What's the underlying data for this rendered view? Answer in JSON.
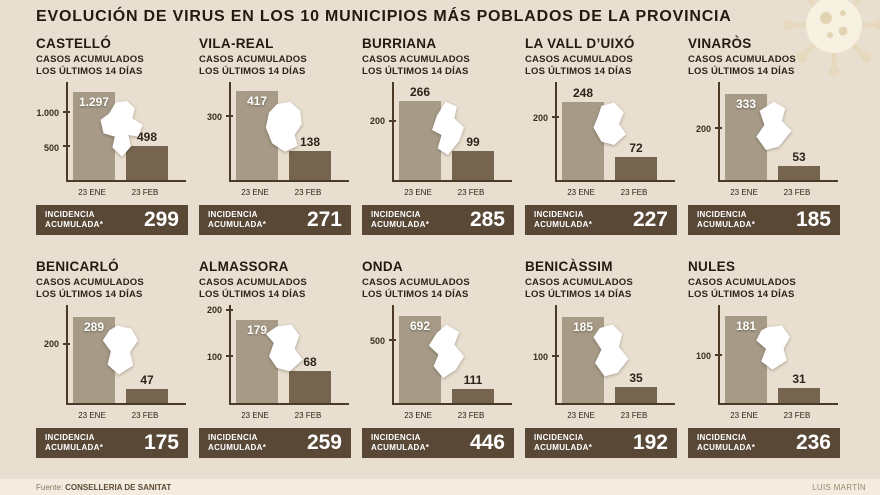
{
  "header": {
    "title": "EVOLUCIÓN DE VIRUS EN LOS 10 MUNICIPIOS MÁS POBLADOS DE LA PROVINCIA"
  },
  "labels": {
    "cases_line1": "CASOS ACUMULADOS",
    "cases_line2": "LOS ÚLTIMOS 14 DÍAS",
    "incidence_line1": "INCIDENCIA",
    "incidence_line2": "ACUMULADA*"
  },
  "colors": {
    "background": "#e9dfd0",
    "bar_23ene": "#a79b88",
    "bar_23feb": "#75654f",
    "incidence_strip": "#5a4836",
    "ink": "#231a10"
  },
  "footer": {
    "source_prefix": "Fuente:",
    "source": "CONSELLERIA DE SANITAT",
    "author": "LUIS MARTÍN"
  },
  "chart_data": [
    {
      "type": "bar",
      "title": "CASTELLÓ",
      "categories": [
        "23 ENE",
        "23 FEB"
      ],
      "values": [
        1297,
        498
      ],
      "value_labels": [
        "1.297",
        "498"
      ],
      "yticks": [
        {
          "value": 1000,
          "label": "1.000"
        },
        {
          "value": 500,
          "label": "500"
        }
      ],
      "ylim": [
        0,
        1450
      ],
      "label1_placement": "inside",
      "incidencia": "299"
    },
    {
      "type": "bar",
      "title": "VILA-REAL",
      "categories": [
        "23 ENE",
        "23 FEB"
      ],
      "values": [
        417,
        138
      ],
      "value_labels": [
        "417",
        "138"
      ],
      "yticks": [
        {
          "value": 300,
          "label": "300"
        }
      ],
      "ylim": [
        0,
        460
      ],
      "label1_placement": "inside",
      "incidencia": "271"
    },
    {
      "type": "bar",
      "title": "BURRIANA",
      "categories": [
        "23 ENE",
        "23 FEB"
      ],
      "values": [
        266,
        99
      ],
      "value_labels": [
        "266",
        "99"
      ],
      "yticks": [
        {
          "value": 200,
          "label": "200"
        }
      ],
      "ylim": [
        0,
        330
      ],
      "label1_placement": "above",
      "incidencia": "285"
    },
    {
      "type": "bar",
      "title": "LA VALL D’UIXÓ",
      "categories": [
        "23 ENE",
        "23 FEB"
      ],
      "values": [
        248,
        72
      ],
      "value_labels": [
        "248",
        "72"
      ],
      "yticks": [
        {
          "value": 200,
          "label": "200"
        }
      ],
      "ylim": [
        0,
        310
      ],
      "label1_placement": "above",
      "incidencia": "227"
    },
    {
      "type": "bar",
      "title": "VINARÒS",
      "categories": [
        "23 ENE",
        "23 FEB"
      ],
      "values": [
        333,
        53
      ],
      "value_labels": [
        "333",
        "53"
      ],
      "yticks": [
        {
          "value": 200,
          "label": "200"
        }
      ],
      "ylim": [
        0,
        380
      ],
      "label1_placement": "inside",
      "incidencia": "185"
    },
    {
      "type": "bar",
      "title": "BENICARLÓ",
      "categories": [
        "23 ENE",
        "23 FEB"
      ],
      "values": [
        289,
        47
      ],
      "value_labels": [
        "289",
        "47"
      ],
      "yticks": [
        {
          "value": 200,
          "label": "200"
        }
      ],
      "ylim": [
        0,
        330
      ],
      "label1_placement": "inside",
      "incidencia": "175"
    },
    {
      "type": "bar",
      "title": "ALMASSORA",
      "categories": [
        "23 ENE",
        "23 FEB"
      ],
      "values": [
        179,
        68
      ],
      "value_labels": [
        "179",
        "68"
      ],
      "yticks": [
        {
          "value": 200,
          "label": "200"
        },
        {
          "value": 100,
          "label": "100"
        }
      ],
      "ylim": [
        0,
        210
      ],
      "label1_placement": "inside",
      "incidencia": "259"
    },
    {
      "type": "bar",
      "title": "ONDA",
      "categories": [
        "23 ENE",
        "23 FEB"
      ],
      "values": [
        692,
        111
      ],
      "value_labels": [
        "692",
        "111"
      ],
      "yticks": [
        {
          "value": 500,
          "label": "500"
        }
      ],
      "ylim": [
        0,
        780
      ],
      "label1_placement": "inside",
      "incidencia": "446"
    },
    {
      "type": "bar",
      "title": "BENICÀSSIM",
      "categories": [
        "23 ENE",
        "23 FEB"
      ],
      "values": [
        185,
        35
      ],
      "value_labels": [
        "185",
        "35"
      ],
      "yticks": [
        {
          "value": 100,
          "label": "100"
        }
      ],
      "ylim": [
        0,
        210
      ],
      "label1_placement": "inside",
      "incidencia": "192"
    },
    {
      "type": "bar",
      "title": "NULES",
      "categories": [
        "23 ENE",
        "23 FEB"
      ],
      "values": [
        181,
        31
      ],
      "value_labels": [
        "181",
        "31"
      ],
      "yticks": [
        {
          "value": 100,
          "label": "100"
        }
      ],
      "ylim": [
        0,
        205
      ],
      "label1_placement": "inside",
      "incidencia": "236"
    }
  ]
}
